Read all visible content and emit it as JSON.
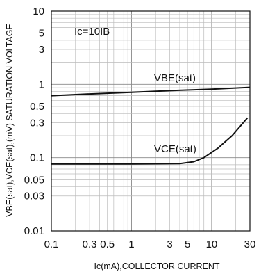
{
  "chart_data": {
    "type": "line",
    "x_scale": "log",
    "y_scale": "log",
    "xlim": [
      0.1,
      30
    ],
    "ylim": [
      0.01,
      10
    ],
    "x_ticks": [
      0.1,
      0.3,
      0.5,
      1,
      3,
      5,
      10,
      30
    ],
    "x_tick_labels": [
      "0.1",
      "0.3",
      "0.5",
      "1",
      "3",
      "5",
      "10",
      "30"
    ],
    "y_ticks": [
      0.01,
      0.03,
      0.05,
      0.1,
      0.3,
      0.5,
      1,
      3,
      5,
      10
    ],
    "y_tick_labels": [
      "0.01",
      "0.03",
      "0.05",
      "0.1",
      "0.3",
      "0.5",
      "1",
      "3",
      "5",
      "10"
    ],
    "xlabel": "Ic(mA),COLLECTOR CURRENT",
    "ylabel": "VBE(sat),VCE(sat),(mV) SATURATION VOLTAGE",
    "grid": true,
    "condition_label": "Ic=10IB",
    "series": [
      {
        "name": "VBE(sat)",
        "x": [
          0.1,
          0.3,
          1,
          3,
          10,
          30
        ],
        "y": [
          0.7,
          0.74,
          0.78,
          0.82,
          0.86,
          0.91
        ]
      },
      {
        "name": "VCE(sat)",
        "x": [
          0.1,
          1,
          4,
          6,
          8,
          12,
          18,
          28
        ],
        "y": [
          0.082,
          0.082,
          0.083,
          0.088,
          0.1,
          0.135,
          0.2,
          0.35
        ]
      }
    ]
  }
}
